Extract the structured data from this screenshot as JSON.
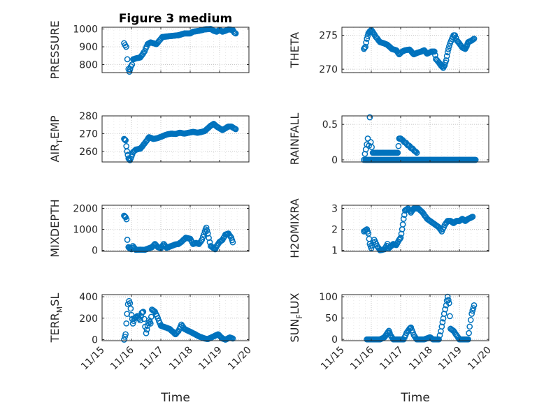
{
  "figure": {
    "title": "Figure 3 medium",
    "x_tick_labels": [
      "11/15",
      "11/16",
      "11/17",
      "11/18",
      "11/19",
      "11/20"
    ],
    "x_label": "Time"
  },
  "colors": {
    "marker": "#0072BD",
    "axis": "#262626",
    "grid": "#c8c8c8"
  },
  "chart_data": [
    {
      "type": "scatter",
      "ylabel_main": "PRESSURE",
      "ylabel_sub": "",
      "xlim": [
        0,
        5
      ],
      "ylim": [
        755,
        1010
      ],
      "yticks": [
        800,
        900,
        1000
      ],
      "anchors": [
        [
          0.75,
          920
        ],
        [
          0.82,
          900
        ],
        [
          0.86,
          830
        ],
        [
          0.9,
          775
        ],
        [
          0.93,
          760
        ],
        [
          0.98,
          790
        ],
        [
          1.02,
          800
        ],
        [
          1.06,
          830
        ],
        [
          1.15,
          835
        ],
        [
          1.3,
          840
        ],
        [
          1.45,
          875
        ],
        [
          1.55,
          915
        ],
        [
          1.65,
          925
        ],
        [
          1.75,
          920
        ],
        [
          1.85,
          915
        ],
        [
          1.95,
          935
        ],
        [
          2.05,
          955
        ],
        [
          2.3,
          960
        ],
        [
          2.6,
          965
        ],
        [
          2.8,
          975
        ],
        [
          3.0,
          975
        ],
        [
          3.1,
          985
        ],
        [
          3.3,
          990
        ],
        [
          3.5,
          998
        ],
        [
          3.7,
          1000
        ],
        [
          3.8,
          990
        ],
        [
          3.9,
          985
        ],
        [
          4.0,
          995
        ],
        [
          4.1,
          985
        ],
        [
          4.2,
          990
        ],
        [
          4.3,
          998
        ],
        [
          4.45,
          995
        ],
        [
          4.5,
          980
        ],
        [
          4.55,
          975
        ]
      ]
    },
    {
      "type": "scatter",
      "ylabel_main": "THETA",
      "ylabel_sub": "",
      "xlim": [
        0,
        5
      ],
      "ylim": [
        269.5,
        276.2
      ],
      "yticks": [
        270,
        275
      ],
      "anchors": [
        [
          0.75,
          273
        ],
        [
          0.8,
          273.3
        ],
        [
          0.85,
          274.5
        ],
        [
          0.9,
          275.3
        ],
        [
          0.95,
          275.6
        ],
        [
          1.0,
          275.8
        ],
        [
          1.05,
          275.5
        ],
        [
          1.15,
          274.8
        ],
        [
          1.3,
          274
        ],
        [
          1.45,
          273.8
        ],
        [
          1.55,
          273.6
        ],
        [
          1.7,
          273
        ],
        [
          1.85,
          272.8
        ],
        [
          1.95,
          272.2
        ],
        [
          2.05,
          272.6
        ],
        [
          2.15,
          272.8
        ],
        [
          2.3,
          272.9
        ],
        [
          2.45,
          272.2
        ],
        [
          2.55,
          272.4
        ],
        [
          2.7,
          272.6
        ],
        [
          2.8,
          272.8
        ],
        [
          2.9,
          272.3
        ],
        [
          3.05,
          272.6
        ],
        [
          3.15,
          272.6
        ],
        [
          3.2,
          271.5
        ],
        [
          3.3,
          271
        ],
        [
          3.38,
          270.5
        ],
        [
          3.45,
          270.2
        ],
        [
          3.5,
          270.6
        ],
        [
          3.55,
          271.3
        ],
        [
          3.6,
          272.5
        ],
        [
          3.68,
          273.8
        ],
        [
          3.75,
          274.5
        ],
        [
          3.8,
          275
        ],
        [
          3.85,
          275
        ],
        [
          3.92,
          274.2
        ],
        [
          4.0,
          273.8
        ],
        [
          4.1,
          273.2
        ],
        [
          4.2,
          273
        ],
        [
          4.25,
          273.4
        ],
        [
          4.3,
          274
        ],
        [
          4.4,
          274.2
        ],
        [
          4.5,
          274.5
        ]
      ]
    },
    {
      "type": "scatter",
      "ylabel_main": "AIR",
      "ylabel_sub": "T",
      "ylabel_rest": "EMP",
      "xlim": [
        0,
        5
      ],
      "ylim": [
        254,
        280
      ],
      "yticks": [
        260,
        270,
        280
      ],
      "anchors": [
        [
          0.75,
          267
        ],
        [
          0.8,
          266.2
        ],
        [
          0.85,
          260
        ],
        [
          0.9,
          256
        ],
        [
          0.95,
          255
        ],
        [
          1.0,
          257
        ],
        [
          1.05,
          259.5
        ],
        [
          1.15,
          261
        ],
        [
          1.3,
          261.5
        ],
        [
          1.45,
          264.5
        ],
        [
          1.6,
          268
        ],
        [
          1.75,
          267
        ],
        [
          1.9,
          267.5
        ],
        [
          2.05,
          268.5
        ],
        [
          2.2,
          269.5
        ],
        [
          2.35,
          270
        ],
        [
          2.5,
          269.8
        ],
        [
          2.65,
          270.5
        ],
        [
          2.8,
          270
        ],
        [
          2.95,
          270.5
        ],
        [
          3.1,
          271
        ],
        [
          3.25,
          270.5
        ],
        [
          3.4,
          271
        ],
        [
          3.5,
          271.5
        ],
        [
          3.6,
          273
        ],
        [
          3.7,
          274.5
        ],
        [
          3.8,
          275.5
        ],
        [
          3.9,
          274
        ],
        [
          4.0,
          273
        ],
        [
          4.1,
          272
        ],
        [
          4.2,
          273
        ],
        [
          4.3,
          274
        ],
        [
          4.4,
          274
        ],
        [
          4.5,
          273
        ],
        [
          4.55,
          272.5
        ]
      ]
    },
    {
      "type": "scatter",
      "ylabel_main": "RAINFALL",
      "ylabel_sub": "",
      "xlim": [
        0,
        5
      ],
      "ylim": [
        -0.03,
        0.62
      ],
      "yticks": [
        0,
        0.5
      ],
      "ytick_labels": [
        "0",
        "0.5"
      ],
      "baseline": 0,
      "base_from": 0.8,
      "base_to": 4.55,
      "base_n": 155,
      "anchors": [
        [
          0.75,
          0
        ],
        [
          0.88,
          0.3
        ],
        [
          0.92,
          0.2
        ],
        [
          0.95,
          0.6
        ],
        [
          0.98,
          0.25
        ],
        [
          1.05,
          0.1
        ],
        [
          1.9,
          0.1
        ],
        [
          1.95,
          0.3
        ],
        [
          2.0,
          0.3
        ],
        [
          2.55,
          0.1
        ]
      ]
    },
    {
      "type": "scatter",
      "ylabel_main": "MIXDEPTH",
      "ylabel_sub": "",
      "xlim": [
        0,
        5
      ],
      "ylim": [
        -50,
        2150
      ],
      "yticks": [
        0,
        1000,
        2000
      ],
      "anchors": [
        [
          0.75,
          1650
        ],
        [
          0.8,
          1580
        ],
        [
          0.83,
          1480
        ],
        [
          0.86,
          500
        ],
        [
          0.9,
          150
        ],
        [
          0.95,
          80
        ],
        [
          1.0,
          50
        ],
        [
          1.05,
          200
        ],
        [
          1.15,
          20
        ],
        [
          1.3,
          30
        ],
        [
          1.45,
          20
        ],
        [
          1.6,
          100
        ],
        [
          1.7,
          150
        ],
        [
          1.8,
          300
        ],
        [
          1.9,
          150
        ],
        [
          2.0,
          100
        ],
        [
          2.1,
          300
        ],
        [
          2.2,
          120
        ],
        [
          2.35,
          200
        ],
        [
          2.5,
          280
        ],
        [
          2.6,
          300
        ],
        [
          2.7,
          400
        ],
        [
          2.85,
          600
        ],
        [
          3.0,
          550
        ],
        [
          3.1,
          300
        ],
        [
          3.2,
          350
        ],
        [
          3.3,
          300
        ],
        [
          3.4,
          500
        ],
        [
          3.5,
          900
        ],
        [
          3.55,
          1080
        ],
        [
          3.6,
          800
        ],
        [
          3.7,
          200
        ],
        [
          3.8,
          100
        ],
        [
          3.85,
          50
        ],
        [
          3.9,
          200
        ],
        [
          4.0,
          400
        ],
        [
          4.1,
          500
        ],
        [
          4.2,
          750
        ],
        [
          4.3,
          800
        ],
        [
          4.4,
          600
        ],
        [
          4.45,
          380
        ]
      ]
    },
    {
      "type": "scatter",
      "ylabel_main": "H2OMIXRA",
      "ylabel_sub": "",
      "xlim": [
        0,
        5
      ],
      "ylim": [
        0.95,
        3.15
      ],
      "yticks": [
        1,
        2,
        3
      ],
      "anchors": [
        [
          0.75,
          1.9
        ],
        [
          0.85,
          2
        ],
        [
          0.9,
          1.8
        ],
        [
          0.95,
          1.3
        ],
        [
          1.0,
          1.1
        ],
        [
          1.1,
          1.5
        ],
        [
          1.2,
          1.2
        ],
        [
          1.3,
          1
        ],
        [
          1.45,
          1.05
        ],
        [
          1.55,
          1.3
        ],
        [
          1.6,
          1.1
        ],
        [
          1.75,
          1.3
        ],
        [
          1.85,
          1.25
        ],
        [
          1.95,
          1.5
        ],
        [
          2.0,
          1.6
        ],
        [
          2.05,
          2.0
        ],
        [
          2.1,
          2.5
        ],
        [
          2.15,
          2.9
        ],
        [
          2.25,
          3
        ],
        [
          2.35,
          2.8
        ],
        [
          2.45,
          3
        ],
        [
          2.6,
          3
        ],
        [
          2.75,
          2.8
        ],
        [
          2.9,
          2.5
        ],
        [
          3.0,
          2.4
        ],
        [
          3.1,
          2.3
        ],
        [
          3.2,
          2.2
        ],
        [
          3.3,
          2.1
        ],
        [
          3.4,
          1.9
        ],
        [
          3.5,
          2.2
        ],
        [
          3.6,
          2.4
        ],
        [
          3.7,
          2.4
        ],
        [
          3.8,
          2.3
        ],
        [
          3.9,
          2.4
        ],
        [
          4.0,
          2.4
        ],
        [
          4.1,
          2.5
        ],
        [
          4.2,
          2.4
        ],
        [
          4.3,
          2.5
        ],
        [
          4.45,
          2.6
        ]
      ]
    },
    {
      "type": "scatter",
      "ylabel_main": "TERR",
      "ylabel_sub": "M",
      "ylabel_rest": "SL",
      "xlim": [
        0,
        5
      ],
      "ylim": [
        -10,
        420
      ],
      "yticks": [
        0,
        200,
        400
      ],
      "anchors": [
        [
          0.75,
          0
        ],
        [
          0.8,
          50
        ],
        [
          0.85,
          240
        ],
        [
          0.88,
          330
        ],
        [
          0.92,
          360
        ],
        [
          0.95,
          340
        ],
        [
          1.0,
          230
        ],
        [
          1.05,
          150
        ],
        [
          1.1,
          200
        ],
        [
          1.2,
          220
        ],
        [
          1.3,
          180
        ],
        [
          1.35,
          250
        ],
        [
          1.4,
          260
        ],
        [
          1.5,
          60
        ],
        [
          1.55,
          130
        ],
        [
          1.6,
          180
        ],
        [
          1.65,
          150
        ],
        [
          1.7,
          280
        ],
        [
          1.8,
          260
        ],
        [
          1.9,
          200
        ],
        [
          2.0,
          130
        ],
        [
          2.1,
          120
        ],
        [
          2.3,
          100
        ],
        [
          2.5,
          50
        ],
        [
          2.6,
          80
        ],
        [
          2.7,
          140
        ],
        [
          2.8,
          100
        ],
        [
          2.95,
          80
        ],
        [
          3.1,
          60
        ],
        [
          3.3,
          30
        ],
        [
          3.5,
          10
        ],
        [
          3.6,
          5
        ],
        [
          3.8,
          30
        ],
        [
          3.95,
          50
        ],
        [
          4.1,
          10
        ],
        [
          4.2,
          0
        ],
        [
          4.35,
          20
        ],
        [
          4.45,
          10
        ]
      ]
    },
    {
      "type": "scatter",
      "ylabel_main": "SUN",
      "ylabel_sub": "F",
      "ylabel_rest": "LUX",
      "xlim": [
        0,
        5
      ],
      "ylim": [
        -3,
        105
      ],
      "yticks": [
        0,
        50,
        100
      ],
      "anchors": [
        [
          0.85,
          0
        ],
        [
          1.3,
          0
        ],
        [
          1.45,
          5
        ],
        [
          1.55,
          15
        ],
        [
          1.6,
          20
        ],
        [
          1.65,
          10
        ],
        [
          1.75,
          0
        ],
        [
          2.1,
          0
        ],
        [
          2.2,
          15
        ],
        [
          2.3,
          25
        ],
        [
          2.35,
          28
        ],
        [
          2.45,
          10
        ],
        [
          2.55,
          0
        ],
        [
          2.8,
          0
        ],
        [
          3.0,
          5
        ],
        [
          3.1,
          0
        ],
        [
          3.3,
          0
        ],
        [
          3.4,
          30
        ],
        [
          3.48,
          60
        ],
        [
          3.55,
          80
        ],
        [
          3.6,
          100
        ],
        [
          3.65,
          85
        ],
        [
          3.7,
          25
        ],
        [
          3.8,
          20
        ],
        [
          3.9,
          10
        ],
        [
          4.0,
          0
        ],
        [
          4.3,
          0
        ],
        [
          4.35,
          30
        ],
        [
          4.42,
          60
        ],
        [
          4.5,
          80
        ]
      ]
    }
  ]
}
